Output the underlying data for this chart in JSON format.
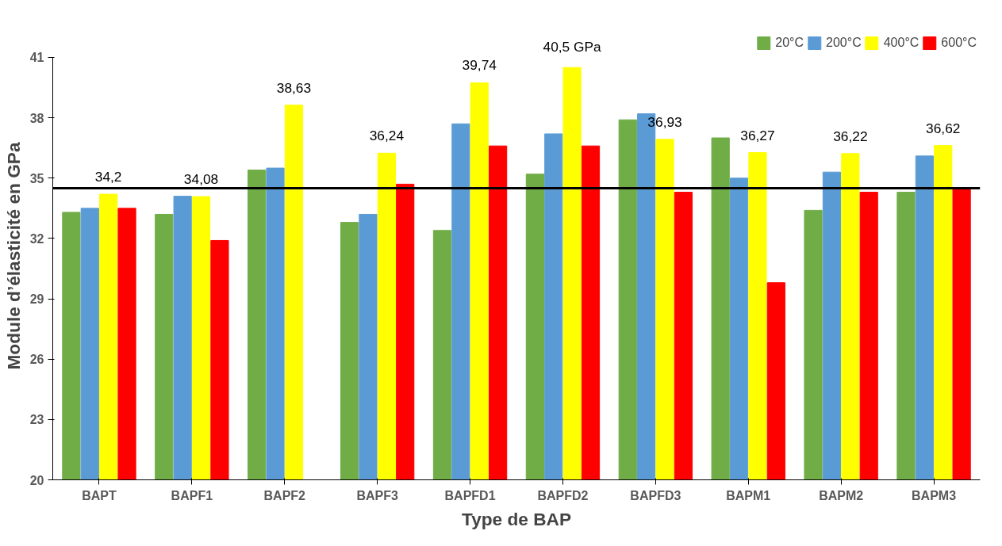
{
  "chart_data": {
    "type": "bar",
    "xlabel": "Type de BAP",
    "ylabel": "Module d’élasticité en GPa",
    "categories": [
      "BAPT",
      "BAPF1",
      "BAPF2",
      "BAPF3",
      "BAPFD1",
      "BAPFD2",
      "BAPFD3",
      "BAPM1",
      "BAPM2",
      "BAPM3"
    ],
    "series": [
      {
        "name": "20°C",
        "color": "#70ad47",
        "values": [
          33.3,
          33.2,
          35.4,
          32.8,
          32.4,
          35.2,
          37.9,
          37,
          33.4,
          34.3
        ]
      },
      {
        "name": "200°C",
        "color": "#5b9bd5",
        "values": [
          33.5,
          34.1,
          35.5,
          33.2,
          37.7,
          37.2,
          38.2,
          35,
          35.3,
          36.1
        ]
      },
      {
        "name": "400°C",
        "color": "#ffff00",
        "values": [
          34.2,
          34.08,
          38.63,
          36.24,
          39.74,
          40.5,
          36.93,
          36.27,
          36.22,
          36.62
        ],
        "value_labels": [
          "34,2",
          "34,08",
          "38,63",
          "36,24",
          "39,74",
          "40,5 GPa",
          "36,93",
          "36,27",
          "36,22",
          "36,62"
        ]
      },
      {
        "name": "600°C",
        "color": "#ff0000",
        "values": [
          33.5,
          31.9,
          null,
          34.7,
          36.6,
          36.6,
          34.3,
          29.8,
          34.3,
          34.5
        ]
      }
    ],
    "ylim": [
      20,
      41
    ],
    "yticks": [
      20,
      23,
      26,
      29,
      32,
      35,
      38,
      41
    ],
    "ref_lines": [
      {
        "axis": "y",
        "value": 34.5,
        "color": "#000000"
      }
    ],
    "grid": false,
    "legend": "top right"
  }
}
